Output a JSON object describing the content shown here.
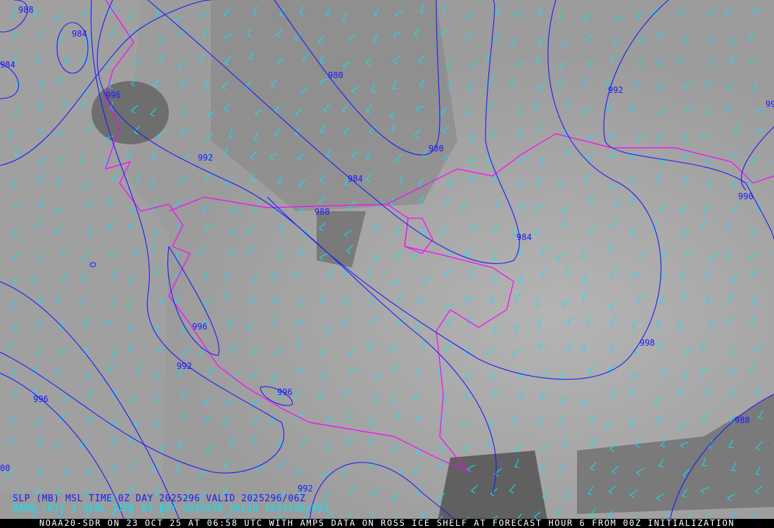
{
  "colors": {
    "isobar": "#1a1aff",
    "barb": "#00e8ff",
    "coastline": "#ff00ff",
    "background": "#9a9a9a",
    "footer_bg": "#000000",
    "footer_text": "#ffffff"
  },
  "isobar_labels": [
    {
      "text": "988"
    },
    {
      "text": "984"
    },
    {
      "text": "984"
    },
    {
      "text": "996"
    },
    {
      "text": "980"
    },
    {
      "text": "992"
    },
    {
      "text": "984"
    },
    {
      "text": "980"
    },
    {
      "text": "988"
    },
    {
      "text": "992"
    },
    {
      "text": "99"
    },
    {
      "text": "996"
    },
    {
      "text": "984"
    },
    {
      "text": "996"
    },
    {
      "text": "992"
    },
    {
      "text": "996"
    },
    {
      "text": "996"
    },
    {
      "text": "998"
    },
    {
      "text": "988"
    },
    {
      "text": "992"
    },
    {
      "text": "00"
    }
  ],
  "legend": {
    "slp": "SLP (MB) MSL TIME 0Z DAY 2025296 VALID 2025296/06Z",
    "barb": "BARB (KT) 1 HYBL TIME 0Z DAY 2025296 VALID 2025296/06Z"
  },
  "footer": "NOAA20-SDR ON 23 OCT 25 AT 06:58 UTC WITH AMPS DATA ON ROSS ICE SHELF AT FORECAST HOUR 6 FROM 00Z INITIALIZATION"
}
